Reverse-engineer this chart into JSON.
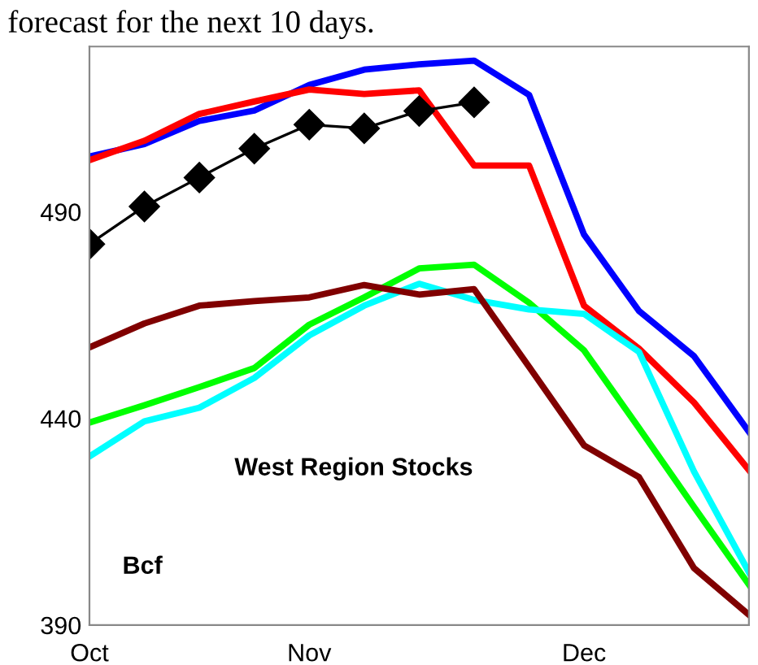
{
  "chart_data": {
    "type": "line",
    "annotations": [
      "forecast for the next 10 days.",
      "West Region Stocks",
      "Bcf"
    ],
    "categories": [
      "Oct",
      null,
      null,
      null,
      "Nov",
      null,
      null,
      null,
      null,
      "Dec",
      null,
      null,
      null
    ],
    "ylim": [
      390,
      530
    ],
    "yticks": [
      390,
      440,
      490
    ],
    "grid": false,
    "legend": false,
    "series": [
      {
        "color": "#0000ff",
        "marker": "none",
        "values": [
          503.4,
          506.4,
          512,
          514.5,
          520.7,
          524.4,
          525.7,
          526.6,
          518.3,
          484.5,
          466,
          455.1,
          436.8
        ]
      },
      {
        "color": "#ff0000",
        "marker": "none",
        "values": [
          502.5,
          507.2,
          513.7,
          516.7,
          519.6,
          518.5,
          519.4,
          501.2,
          501.2,
          467.3,
          456.9,
          443.9,
          427.5
        ]
      },
      {
        "color": "#00ff00",
        "marker": "none",
        "values": [
          439,
          443.2,
          447.6,
          452.2,
          462.7,
          469.3,
          476.3,
          477.2,
          468,
          456.5,
          437.7,
          418.6,
          399.8
        ]
      },
      {
        "color": "#00ffff",
        "marker": "none",
        "values": [
          430.8,
          439.3,
          442.6,
          449.8,
          460.1,
          467.3,
          472.6,
          468.7,
          466.4,
          465.3,
          456.1,
          427.2,
          402.8
        ]
      },
      {
        "color": "#800000",
        "marker": "none",
        "values": [
          457.2,
          463,
          467.3,
          468.4,
          469.3,
          472.3,
          470,
          471.3,
          452.5,
          433.5,
          425.8,
          403.8,
          392.5
        ]
      },
      {
        "color": "#000000",
        "marker": "diamond",
        "values": [
          482.2,
          491.3,
          498.3,
          505.3,
          511.1,
          510.2,
          514.4,
          516.5,
          null,
          null,
          null,
          null,
          null
        ]
      }
    ]
  }
}
